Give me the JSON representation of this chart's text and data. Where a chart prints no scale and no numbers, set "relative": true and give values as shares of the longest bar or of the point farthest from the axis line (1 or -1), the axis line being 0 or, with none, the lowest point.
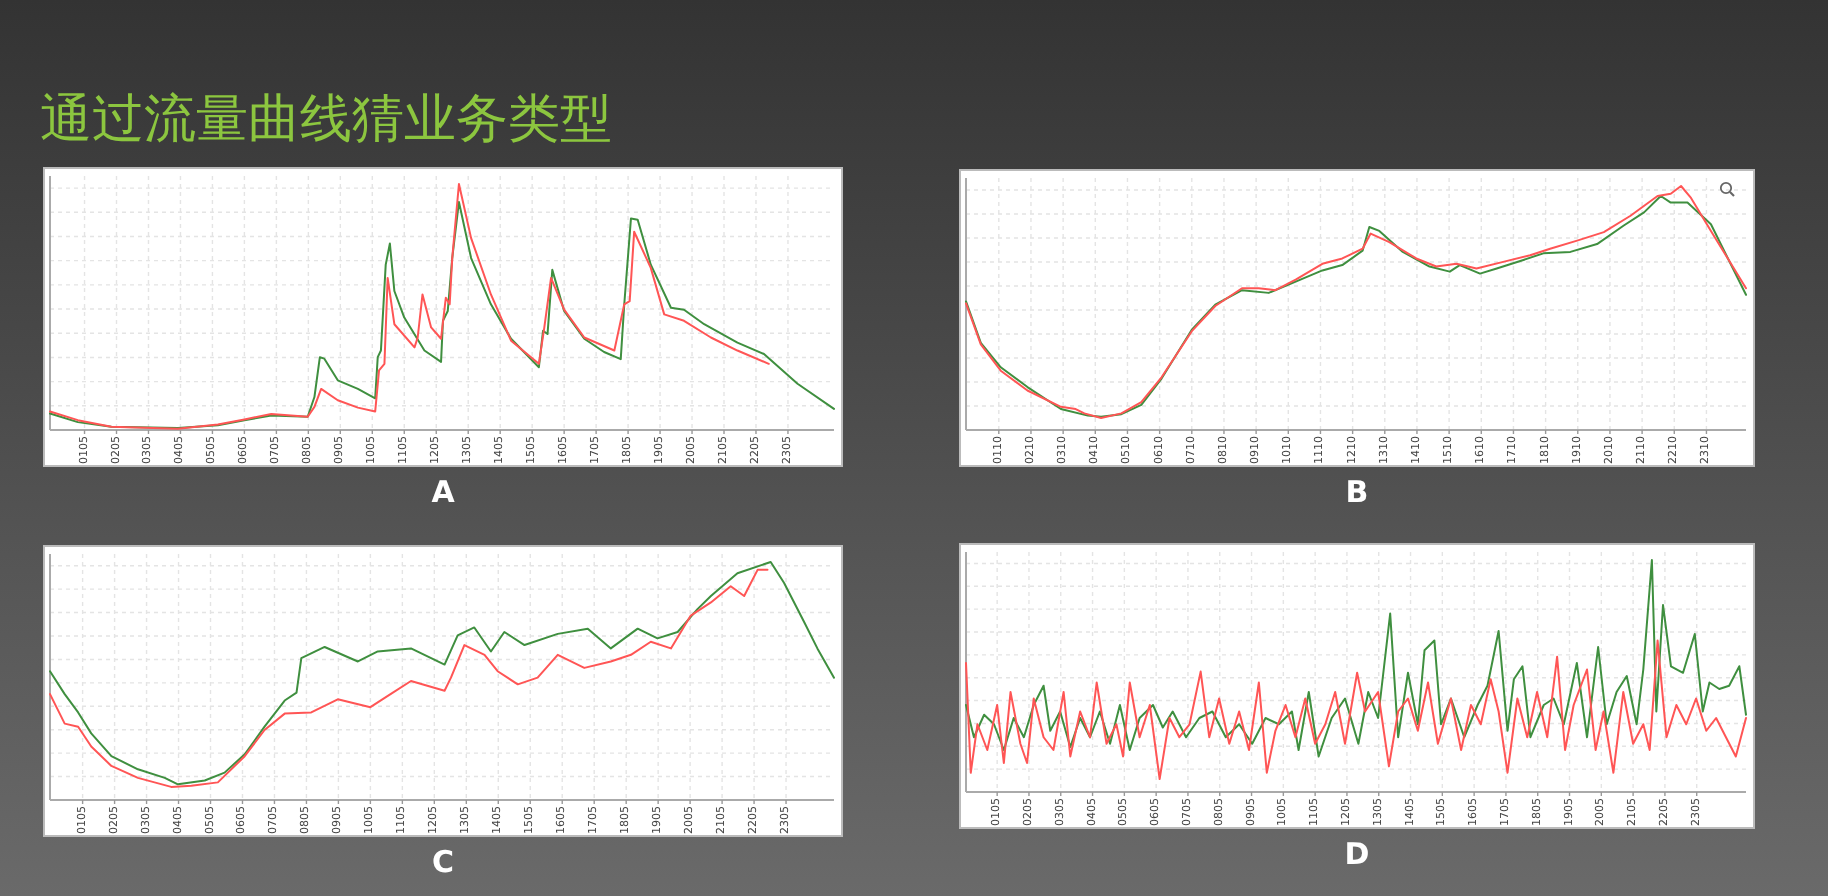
{
  "chart_data": [
    {
      "type": "other",
      "title": "通过流量曲线猜业务类型"
    },
    {
      "type": "line",
      "relative": true,
      "xlabel": "A",
      "tick_labels": "x",
      "grid": true,
      "xlim": [
        -3,
        2449
      ],
      "xticks": [
        {
          "value": 105,
          "label": "0105"
        },
        {
          "value": 205,
          "label": "0205"
        },
        {
          "value": 305,
          "label": "0305"
        },
        {
          "value": 405,
          "label": "0405"
        },
        {
          "value": 505,
          "label": "0505"
        },
        {
          "value": 605,
          "label": "0605"
        },
        {
          "value": 705,
          "label": "0705"
        },
        {
          "value": 805,
          "label": "0805"
        },
        {
          "value": 905,
          "label": "0905"
        },
        1005,
        1105,
        1205,
        1305,
        1405,
        1505,
        1605,
        1705,
        1805,
        1905,
        2005,
        2105,
        2205,
        2305
      ],
      "series": [
        {
          "color": "#3f8f3f",
          "x": [
            -3,
            84,
            189,
            397,
            522,
            605,
            689,
            803,
            824,
            841,
            855,
            897,
            960,
            1014,
            1022,
            1032,
            1047,
            1060,
            1074,
            1105,
            1168,
            1220,
            1226,
            1241,
            1255,
            1276,
            1314,
            1376,
            1439,
            1526,
            1539,
            1553,
            1568,
            1605,
            1668,
            1730,
            1782,
            1793,
            1814,
            1835,
            1876,
            1939,
            1980,
            2043,
            2147,
            2230,
            2335,
            2449
          ],
          "values": [
            0.067,
            0.032,
            0.013,
            0.008,
            0.019,
            0.04,
            0.059,
            0.054,
            0.134,
            0.296,
            0.29,
            0.202,
            0.167,
            0.129,
            0.296,
            0.323,
            0.672,
            0.758,
            0.565,
            0.457,
            0.323,
            0.277,
            0.444,
            0.484,
            0.699,
            0.927,
            0.699,
            0.511,
            0.371,
            0.255,
            0.403,
            0.39,
            0.651,
            0.484,
            0.371,
            0.317,
            0.288,
            0.511,
            0.86,
            0.855,
            0.672,
            0.497,
            0.489,
            0.43,
            0.355,
            0.309,
            0.188,
            0.086
          ]
        },
        {
          "color": "#ff5555",
          "x": [
            -3,
            84,
            189,
            397,
            522,
            605,
            689,
            803,
            824,
            845,
            897,
            960,
            1014,
            1026,
            1043,
            1053,
            1074,
            1137,
            1147,
            1162,
            1189,
            1220,
            1235,
            1247,
            1255,
            1276,
            1314,
            1376,
            1439,
            1526,
            1543,
            1564,
            1605,
            1668,
            1762,
            1793,
            1810,
            1824,
            1876,
            1918,
            1980,
            2064,
            2147,
            2245
          ],
          "values": [
            0.075,
            0.04,
            0.013,
            0.005,
            0.022,
            0.043,
            0.065,
            0.054,
            0.094,
            0.167,
            0.121,
            0.091,
            0.075,
            0.242,
            0.269,
            0.618,
            0.43,
            0.336,
            0.376,
            0.551,
            0.417,
            0.371,
            0.538,
            0.511,
            0.699,
            1,
            0.78,
            0.551,
            0.363,
            0.269,
            0.417,
            0.618,
            0.489,
            0.376,
            0.323,
            0.511,
            0.524,
            0.806,
            0.659,
            0.47,
            0.444,
            0.376,
            0.323,
            0.269
          ]
        }
      ]
    },
    {
      "type": "line",
      "relative": true,
      "xlabel": "B",
      "tick_labels": "x",
      "grid": true,
      "xlim": [
        8,
        2433
      ],
      "xticks": [
        {
          "value": 110,
          "label": "0110"
        },
        {
          "value": 210,
          "label": "0210"
        },
        {
          "value": 310,
          "label": "0310"
        },
        {
          "value": 410,
          "label": "0410"
        },
        {
          "value": 510,
          "label": "0510"
        },
        {
          "value": 610,
          "label": "0610"
        },
        {
          "value": 710,
          "label": "0710"
        },
        {
          "value": 810,
          "label": "0810"
        },
        {
          "value": 910,
          "label": "0910"
        },
        1010,
        1110,
        1210,
        1310,
        1410,
        1510,
        1610,
        1710,
        1810,
        1910,
        2010,
        2110,
        2210,
        2310
      ],
      "series": [
        {
          "color": "#3f8f3f",
          "x": [
            8,
            54,
            116,
            199,
            303,
            387,
            428,
            491,
            553,
            616,
            710,
            783,
            866,
            949,
            1033,
            1116,
            1178,
            1241,
            1262,
            1293,
            1366,
            1449,
            1512,
            1543,
            1606,
            1658,
            1741,
            1803,
            1887,
            1970,
            2053,
            2116,
            2168,
            2199,
            2251,
            2324,
            2433
          ],
          "values": [
            0.527,
            0.357,
            0.257,
            0.176,
            0.086,
            0.059,
            0.054,
            0.065,
            0.103,
            0.211,
            0.411,
            0.514,
            0.573,
            0.562,
            0.608,
            0.654,
            0.676,
            0.735,
            0.832,
            0.816,
            0.73,
            0.67,
            0.649,
            0.676,
            0.641,
            0.662,
            0.697,
            0.724,
            0.73,
            0.762,
            0.838,
            0.892,
            0.959,
            0.932,
            0.932,
            0.843,
            0.554
          ]
        },
        {
          "color": "#ff5555",
          "x": [
            8,
            54,
            116,
            199,
            303,
            349,
            376,
            428,
            491,
            553,
            616,
            710,
            783,
            866,
            918,
            970,
            1033,
            1116,
            1178,
            1241,
            1266,
            1324,
            1408,
            1470,
            1533,
            1595,
            1678,
            1762,
            1824,
            1908,
            1991,
            2074,
            2158,
            2199,
            2231,
            2262,
            2324,
            2433
          ],
          "values": [
            0.519,
            0.351,
            0.243,
            0.162,
            0.095,
            0.086,
            0.068,
            0.049,
            0.068,
            0.114,
            0.216,
            0.405,
            0.508,
            0.581,
            0.581,
            0.573,
            0.616,
            0.681,
            0.703,
            0.743,
            0.805,
            0.77,
            0.703,
            0.67,
            0.681,
            0.662,
            0.689,
            0.716,
            0.743,
            0.776,
            0.811,
            0.878,
            0.959,
            0.968,
            1,
            0.951,
            0.816,
            0.581
          ]
        }
      ]
    },
    {
      "type": "line",
      "relative": true,
      "xlabel": "C",
      "tick_labels": "x",
      "grid": true,
      "xlim": [
        3,
        2455
      ],
      "xticks": [
        {
          "value": 105,
          "label": "0105"
        },
        {
          "value": 205,
          "label": "0205"
        },
        {
          "value": 305,
          "label": "0305"
        },
        {
          "value": 405,
          "label": "0405"
        },
        {
          "value": 505,
          "label": "0505"
        },
        {
          "value": 605,
          "label": "0605"
        },
        {
          "value": 705,
          "label": "0705"
        },
        {
          "value": 805,
          "label": "0805"
        },
        {
          "value": 905,
          "label": "0905"
        },
        1005,
        1105,
        1205,
        1305,
        1405,
        1505,
        1605,
        1705,
        1805,
        1905,
        2005,
        2105,
        2205,
        2305
      ],
      "series": [
        {
          "color": "#3f8f3f",
          "x": [
            3,
            49,
            91,
            132,
            195,
            278,
            362,
            403,
            487,
            549,
            612,
            674,
            737,
            774,
            789,
            862,
            966,
            1028,
            1132,
            1237,
            1278,
            1330,
            1382,
            1424,
            1487,
            1591,
            1685,
            1757,
            1841,
            1903,
            1966,
            2028,
            2070,
            2153,
            2257,
            2299,
            2362,
            2403,
            2455
          ],
          "values": [
            0.541,
            0.445,
            0.368,
            0.28,
            0.184,
            0.129,
            0.093,
            0.066,
            0.082,
            0.115,
            0.192,
            0.308,
            0.418,
            0.451,
            0.596,
            0.643,
            0.582,
            0.624,
            0.637,
            0.569,
            0.692,
            0.725,
            0.624,
            0.706,
            0.651,
            0.698,
            0.72,
            0.637,
            0.72,
            0.679,
            0.706,
            0.802,
            0.857,
            0.953,
            1,
            0.912,
            0.747,
            0.637,
            0.514
          ]
        },
        {
          "color": "#ff5555",
          "x": [
            3,
            49,
            91,
            132,
            195,
            278,
            382,
            445,
            528,
            612,
            674,
            737,
            820,
            903,
            1005,
            1068,
            1132,
            1237,
            1257,
            1299,
            1362,
            1403,
            1466,
            1528,
            1591,
            1674,
            1757,
            1820,
            1882,
            1945,
            2007,
            2070,
            2132,
            2174,
            2216,
            2247
          ],
          "values": [
            0.445,
            0.321,
            0.308,
            0.225,
            0.143,
            0.093,
            0.055,
            0.06,
            0.074,
            0.184,
            0.294,
            0.363,
            0.368,
            0.423,
            0.39,
            0.445,
            0.5,
            0.459,
            0.514,
            0.651,
            0.61,
            0.541,
            0.486,
            0.514,
            0.61,
            0.555,
            0.582,
            0.61,
            0.665,
            0.637,
            0.775,
            0.83,
            0.898,
            0.857,
            0.967,
            0.967
          ]
        }
      ]
    },
    {
      "type": "line",
      "relative": true,
      "xlabel": "D",
      "tick_labels": "x",
      "grid": true,
      "xlim": [
        7,
        2460
      ],
      "xticks": [
        {
          "value": 105,
          "label": "0105"
        },
        {
          "value": 205,
          "label": "0205"
        },
        {
          "value": 305,
          "label": "0305"
        },
        {
          "value": 405,
          "label": "0405"
        },
        {
          "value": 505,
          "label": "0505"
        },
        {
          "value": 605,
          "label": "0605"
        },
        {
          "value": 705,
          "label": "0705"
        },
        {
          "value": 805,
          "label": "0805"
        },
        {
          "value": 905,
          "label": "0905"
        },
        1005,
        1105,
        1205,
        1305,
        1405,
        1505,
        1605,
        1705,
        1805,
        1905,
        2005,
        2105,
        2205,
        2305
      ],
      "series": [
        {
          "color": "#3f8f3f",
          "x": [
            7,
            32,
            64,
            95,
            126,
            157,
            189,
            220,
            251,
            272,
            303,
            335,
            366,
            397,
            428,
            460,
            491,
            522,
            553,
            595,
            626,
            657,
            699,
            741,
            782,
            824,
            866,
            907,
            949,
            991,
            1032,
            1053,
            1085,
            1116,
            1157,
            1199,
            1241,
            1272,
            1303,
            1341,
            1366,
            1397,
            1428,
            1449,
            1480,
            1501,
            1532,
            1574,
            1616,
            1647,
            1682,
            1710,
            1730,
            1757,
            1782,
            1824,
            1855,
            1887,
            1928,
            1960,
            1995,
            2022,
            2053,
            2085,
            2116,
            2137,
            2164,
            2178,
            2199,
            2224,
            2262,
            2299,
            2324,
            2345,
            2376,
            2407,
            2439,
            2460
          ],
          "values": [
            0.375,
            0.236,
            0.333,
            0.292,
            0.181,
            0.319,
            0.236,
            0.375,
            0.458,
            0.264,
            0.347,
            0.194,
            0.319,
            0.236,
            0.347,
            0.208,
            0.375,
            0.181,
            0.319,
            0.375,
            0.278,
            0.347,
            0.236,
            0.319,
            0.347,
            0.236,
            0.292,
            0.208,
            0.319,
            0.292,
            0.347,
            0.181,
            0.431,
            0.153,
            0.319,
            0.403,
            0.208,
            0.431,
            0.319,
            0.769,
            0.236,
            0.514,
            0.292,
            0.611,
            0.653,
            0.292,
            0.403,
            0.236,
            0.375,
            0.458,
            0.694,
            0.264,
            0.486,
            0.542,
            0.236,
            0.375,
            0.403,
            0.292,
            0.556,
            0.236,
            0.625,
            0.292,
            0.431,
            0.5,
            0.292,
            0.528,
            1,
            0.347,
            0.806,
            0.542,
            0.514,
            0.681,
            0.347,
            0.472,
            0.444,
            0.458,
            0.542,
            0.333
          ]
        },
        {
          "color": "#ff5555",
          "x": [
            7,
            22,
            43,
            74,
            105,
            126,
            147,
            178,
            199,
            220,
            251,
            282,
            314,
            335,
            366,
            397,
            418,
            449,
            480,
            501,
            522,
            553,
            585,
            616,
            647,
            678,
            710,
            745,
            772,
            803,
            835,
            866,
            897,
            928,
            953,
            980,
            1012,
            1043,
            1074,
            1105,
            1137,
            1168,
            1199,
            1237,
            1262,
            1303,
            1337,
            1366,
            1397,
            1428,
            1460,
            1491,
            1532,
            1564,
            1595,
            1626,
            1657,
            1682,
            1710,
            1741,
            1772,
            1803,
            1835,
            1866,
            1891,
            1918,
            1960,
            1987,
            2012,
            2043,
            2074,
            2105,
            2137,
            2157,
            2182,
            2210,
            2241,
            2272,
            2303,
            2335,
            2366,
            2397,
            2428,
            2460
          ],
          "values": [
            0.556,
            0.083,
            0.292,
            0.181,
            0.375,
            0.125,
            0.431,
            0.208,
            0.125,
            0.403,
            0.236,
            0.181,
            0.431,
            0.153,
            0.347,
            0.236,
            0.472,
            0.208,
            0.292,
            0.153,
            0.472,
            0.236,
            0.375,
            0.056,
            0.319,
            0.236,
            0.292,
            0.519,
            0.236,
            0.403,
            0.208,
            0.347,
            0.181,
            0.472,
            0.083,
            0.264,
            0.375,
            0.236,
            0.403,
            0.208,
            0.292,
            0.431,
            0.208,
            0.514,
            0.347,
            0.431,
            0.111,
            0.347,
            0.403,
            0.264,
            0.472,
            0.208,
            0.403,
            0.181,
            0.375,
            0.292,
            0.486,
            0.347,
            0.083,
            0.403,
            0.236,
            0.431,
            0.236,
            0.583,
            0.181,
            0.375,
            0.528,
            0.181,
            0.347,
            0.083,
            0.431,
            0.208,
            0.292,
            0.181,
            0.653,
            0.236,
            0.375,
            0.292,
            0.403,
            0.264,
            0.319,
            0.236,
            0.153,
            0.319
          ]
        }
      ]
    }
  ]
}
